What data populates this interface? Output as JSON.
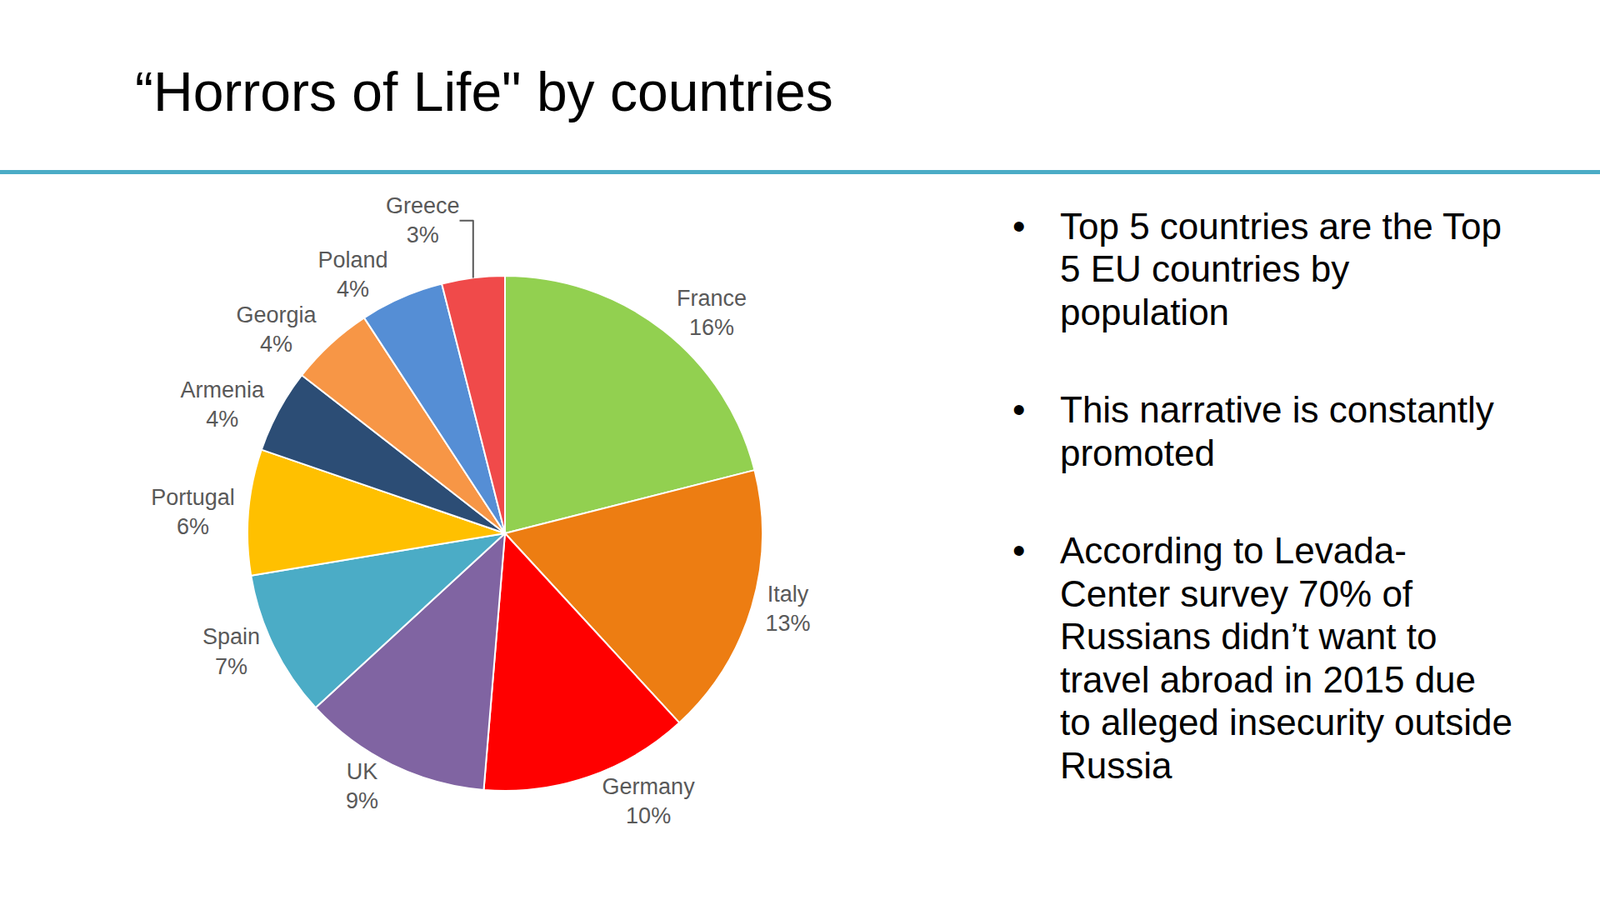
{
  "chart_data": {
    "type": "pie",
    "title": "“Horrors of Life\" by countries",
    "categories": [
      "France",
      "Italy",
      "Germany",
      "UK",
      "Spain",
      "Portugal",
      "Armenia",
      "Georgia",
      "Poland",
      "Greece"
    ],
    "values": [
      16,
      13,
      10,
      9,
      7,
      6,
      4,
      4,
      4,
      3
    ],
    "value_labels": [
      "16%",
      "13%",
      "10%",
      "9%",
      "7%",
      "6%",
      "4%",
      "4%",
      "4%",
      "3%"
    ],
    "colors": [
      "#92d050",
      "#ed7d12",
      "#ff0000",
      "#8064a2",
      "#4bacc6",
      "#ffc000",
      "#2c4d75",
      "#f79646",
      "#558ed5",
      "#f04a4a"
    ],
    "data_labels": true
  },
  "bullets": [
    "Top 5 countries are the Top 5 EU countries by population",
    "This narrative is constantly promoted",
    "According to Levada-Center survey 70% of Russians didn’t want to travel abroad in 2015 due to alleged insecurity outside Russia"
  ]
}
